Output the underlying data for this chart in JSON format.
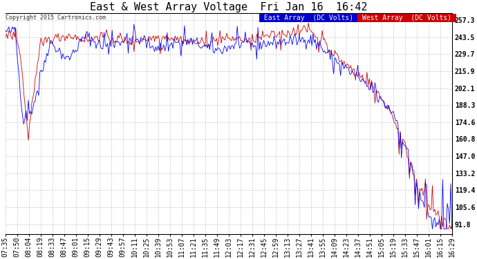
{
  "title": "East & West Array Voltage  Fri Jan 16  16:42",
  "copyright": "Copyright 2015 Cartronics.com",
  "legend_east": "East Array  (DC Volts)",
  "legend_west": "West Array  (DC Volts)",
  "east_color": "#0000ff",
  "west_color": "#cc0000",
  "yticks": [
    91.8,
    105.6,
    119.4,
    133.2,
    147.0,
    160.8,
    174.6,
    188.3,
    202.1,
    215.9,
    229.7,
    243.5,
    257.3
  ],
  "ymin": 84.0,
  "ymax": 263.0,
  "background_color": "#ffffff",
  "plot_bg_color": "#ffffff",
  "grid_color": "#bbbbbb",
  "title_fontsize": 11,
  "tick_fontsize": 7,
  "xtick_labels": [
    "07:35",
    "07:50",
    "08:04",
    "08:19",
    "08:33",
    "08:47",
    "09:01",
    "09:15",
    "09:29",
    "09:43",
    "09:57",
    "10:11",
    "10:25",
    "10:39",
    "10:53",
    "11:07",
    "11:21",
    "11:35",
    "11:49",
    "12:03",
    "12:17",
    "12:31",
    "12:45",
    "12:59",
    "13:13",
    "13:27",
    "13:41",
    "13:55",
    "14:09",
    "14:23",
    "14:37",
    "14:51",
    "15:05",
    "15:19",
    "15:33",
    "15:47",
    "16:01",
    "16:15",
    "16:29"
  ]
}
